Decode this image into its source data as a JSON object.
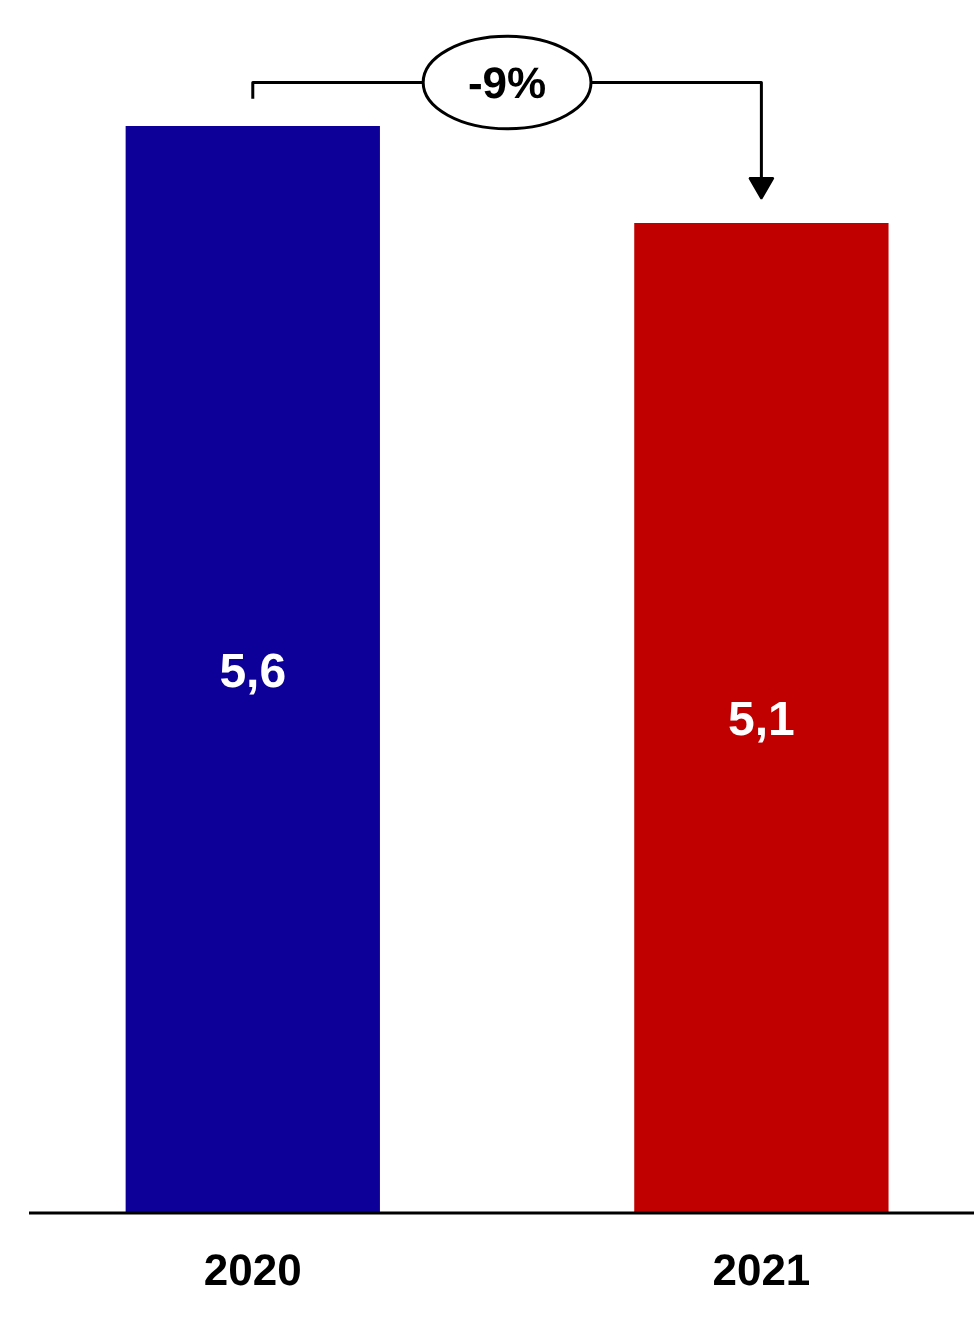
{
  "chart_data": {
    "type": "bar",
    "categories": [
      "2020",
      "2021"
    ],
    "values": [
      5.6,
      5.1
    ],
    "colors": [
      "#0c0099",
      "#c00000"
    ],
    "value_labels": [
      "5,6",
      "5,1"
    ],
    "annotations": [
      "-9%"
    ],
    "grid": false
  }
}
